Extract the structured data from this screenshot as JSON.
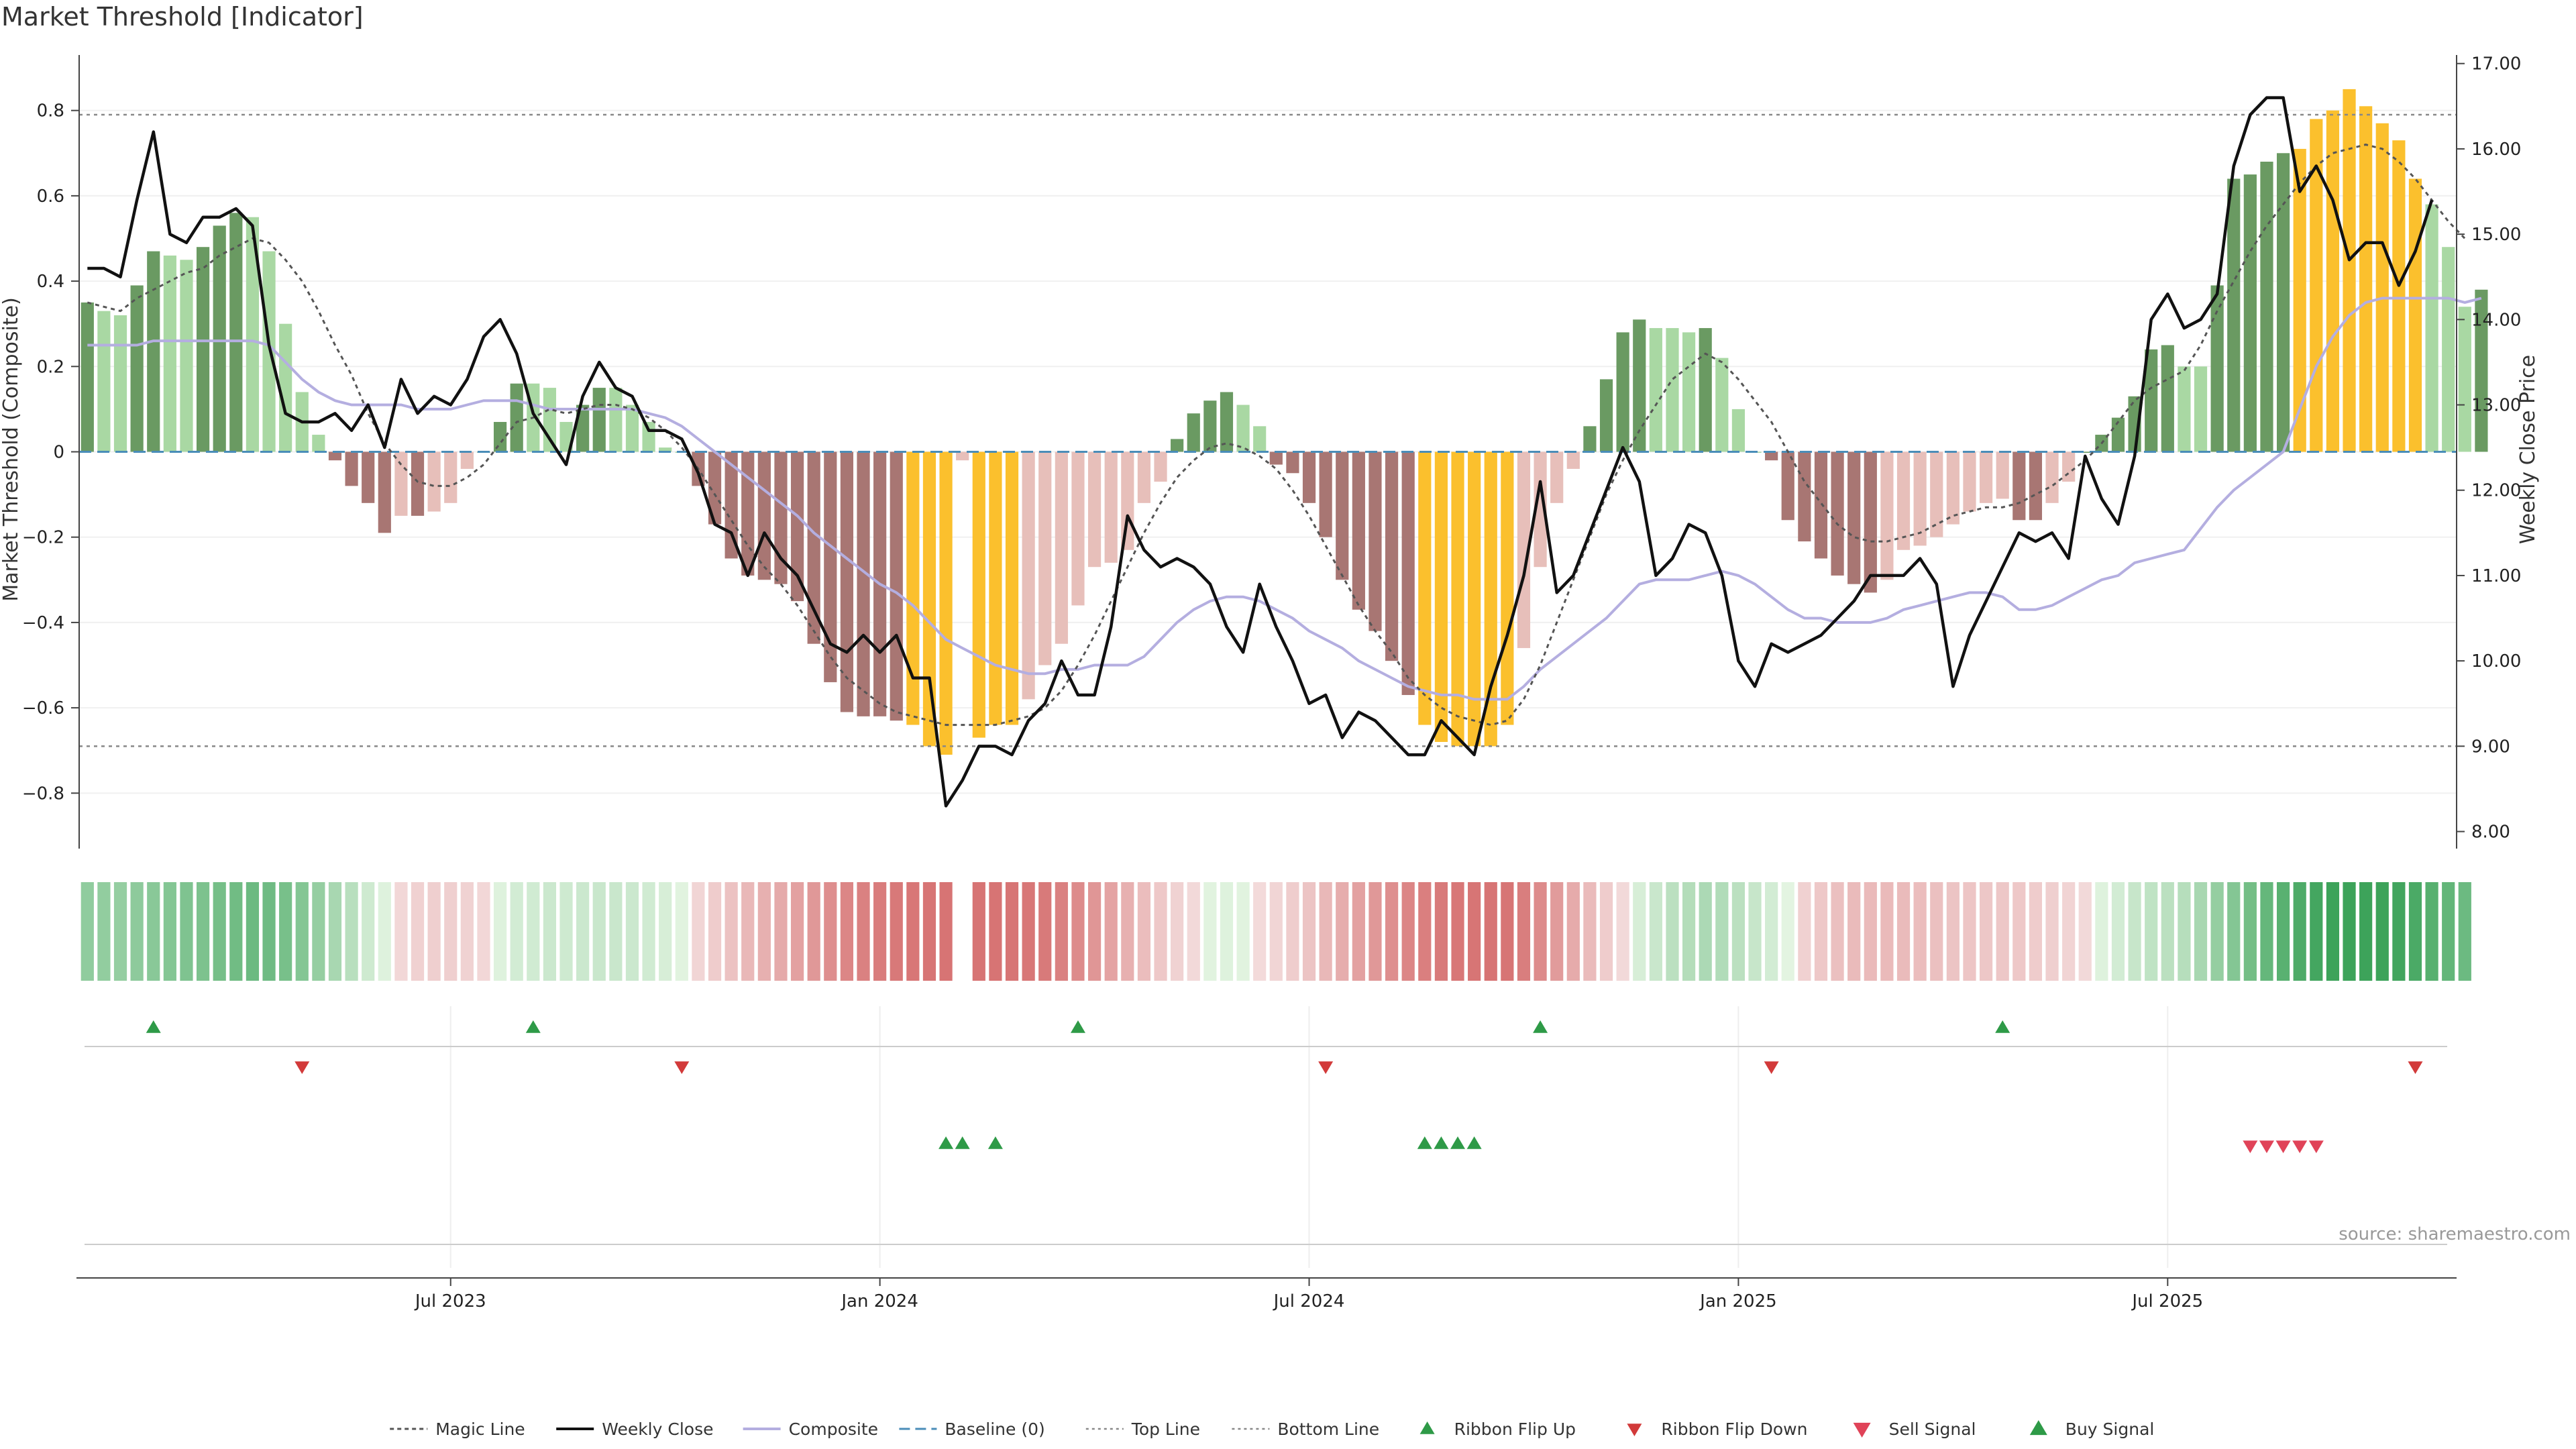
{
  "chart_data": {
    "type": "bar",
    "title": "Market Threshold [Indicator]",
    "ylabel_left": "Market Threshold (Composite)",
    "ylabel_right": "Weekly Close Price",
    "ylim_left": [
      -0.93,
      0.93
    ],
    "ylim_right": [
      7.8,
      17.1
    ],
    "yticks_left": [
      "−0.8",
      "−0.6",
      "−0.4",
      "−0.2",
      "0",
      "0.2",
      "0.4",
      "0.6",
      "0.8"
    ],
    "yticks_left_values": [
      -0.8,
      -0.6,
      -0.4,
      -0.2,
      0,
      0.2,
      0.4,
      0.6,
      0.8
    ],
    "yticks_right": [
      "8.00",
      "9.00",
      "10.00",
      "11.00",
      "12.00",
      "13.00",
      "14.00",
      "15.00",
      "16.00",
      "17.00"
    ],
    "yticks_right_values": [
      8,
      9,
      10,
      11,
      12,
      13,
      14,
      15,
      16,
      17
    ],
    "xticks": [
      {
        "label": "Jul 2023",
        "week": 22
      },
      {
        "label": "Jan 2024",
        "week": 48
      },
      {
        "label": "Jul 2024",
        "week": 74
      },
      {
        "label": "Jan 2025",
        "week": 100
      },
      {
        "label": "Jul 2025",
        "week": 126
      }
    ],
    "week_count": 144,
    "first_week": "2023-01-30",
    "top_line": 0.79,
    "bottom_line": -0.69,
    "bars": [
      0.35,
      0.33,
      0.32,
      0.39,
      0.47,
      0.46,
      0.45,
      0.48,
      0.53,
      0.56,
      0.55,
      0.47,
      0.3,
      0.14,
      0.04,
      -0.02,
      -0.08,
      -0.12,
      -0.19,
      -0.15,
      -0.15,
      -0.14,
      -0.12,
      -0.04,
      0.0,
      0.07,
      0.16,
      0.16,
      0.15,
      0.07,
      0.11,
      0.15,
      0.15,
      0.11,
      0.07,
      0.01,
      0.0,
      -0.08,
      -0.17,
      -0.25,
      -0.29,
      -0.3,
      -0.31,
      -0.35,
      -0.45,
      -0.54,
      -0.61,
      -0.62,
      -0.62,
      -0.63,
      -0.64,
      -0.69,
      -0.71,
      -0.02,
      -0.67,
      -0.64,
      -0.64,
      -0.58,
      -0.5,
      -0.45,
      -0.36,
      -0.27,
      -0.26,
      -0.23,
      -0.12,
      -0.07,
      0.03,
      0.09,
      0.12,
      0.14,
      0.11,
      0.06,
      -0.03,
      -0.05,
      -0.12,
      -0.2,
      -0.3,
      -0.37,
      -0.42,
      -0.49,
      -0.57,
      -0.64,
      -0.68,
      -0.69,
      -0.69,
      -0.69,
      -0.64,
      -0.46,
      -0.27,
      -0.12,
      -0.04,
      0.06,
      0.17,
      0.28,
      0.31,
      0.29,
      0.29,
      0.28,
      0.29,
      0.22,
      0.1,
      0.0,
      -0.02,
      -0.16,
      -0.21,
      -0.25,
      -0.29,
      -0.31,
      -0.33,
      -0.3,
      -0.23,
      -0.22,
      -0.2,
      -0.17,
      -0.14,
      -0.12,
      -0.11,
      -0.16,
      -0.16,
      -0.12,
      -0.07,
      0.0,
      0.04,
      0.08,
      0.13,
      0.24,
      0.25,
      0.2,
      0.2,
      0.39,
      0.64,
      0.65,
      0.68,
      0.7,
      0.71,
      0.78,
      0.8,
      0.85,
      0.81,
      0.77,
      0.73,
      0.64,
      0.58,
      0.48,
      0.34,
      0.38
    ],
    "magic_line": [
      0.35,
      0.34,
      0.33,
      0.36,
      0.38,
      0.4,
      0.42,
      0.43,
      0.46,
      0.48,
      0.5,
      0.49,
      0.45,
      0.4,
      0.33,
      0.25,
      0.18,
      0.09,
      0.02,
      -0.03,
      -0.07,
      -0.08,
      -0.08,
      -0.06,
      -0.03,
      0.02,
      0.07,
      0.08,
      0.1,
      0.09,
      0.1,
      0.11,
      0.11,
      0.1,
      0.08,
      0.05,
      0.01,
      -0.04,
      -0.1,
      -0.16,
      -0.22,
      -0.27,
      -0.31,
      -0.36,
      -0.42,
      -0.48,
      -0.53,
      -0.56,
      -0.59,
      -0.61,
      -0.62,
      -0.63,
      -0.64,
      -0.64,
      -0.64,
      -0.64,
      -0.63,
      -0.62,
      -0.6,
      -0.56,
      -0.5,
      -0.43,
      -0.35,
      -0.27,
      -0.19,
      -0.12,
      -0.06,
      -0.02,
      0.01,
      0.02,
      0.01,
      -0.01,
      -0.04,
      -0.09,
      -0.15,
      -0.22,
      -0.29,
      -0.36,
      -0.42,
      -0.47,
      -0.53,
      -0.57,
      -0.6,
      -0.62,
      -0.63,
      -0.64,
      -0.63,
      -0.58,
      -0.5,
      -0.4,
      -0.3,
      -0.2,
      -0.1,
      -0.02,
      0.05,
      0.11,
      0.17,
      0.2,
      0.23,
      0.21,
      0.17,
      0.12,
      0.07,
      0.0,
      -0.07,
      -0.12,
      -0.17,
      -0.2,
      -0.21,
      -0.21,
      -0.2,
      -0.19,
      -0.17,
      -0.15,
      -0.14,
      -0.13,
      -0.13,
      -0.12,
      -0.1,
      -0.08,
      -0.05,
      -0.02,
      0.02,
      0.07,
      0.12,
      0.15,
      0.17,
      0.19,
      0.25,
      0.33,
      0.4,
      0.47,
      0.53,
      0.58,
      0.63,
      0.67,
      0.7,
      0.71,
      0.72,
      0.71,
      0.68,
      0.64,
      0.59,
      0.54,
      0.5
    ],
    "composite": [
      0.25,
      0.25,
      0.25,
      0.25,
      0.26,
      0.26,
      0.26,
      0.26,
      0.26,
      0.26,
      0.26,
      0.25,
      0.21,
      0.17,
      0.14,
      0.12,
      0.11,
      0.11,
      0.11,
      0.11,
      0.1,
      0.1,
      0.1,
      0.11,
      0.12,
      0.12,
      0.12,
      0.11,
      0.1,
      0.1,
      0.1,
      0.1,
      0.1,
      0.1,
      0.09,
      0.08,
      0.06,
      0.03,
      0.0,
      -0.03,
      -0.06,
      -0.09,
      -0.12,
      -0.15,
      -0.19,
      -0.22,
      -0.25,
      -0.28,
      -0.31,
      -0.33,
      -0.36,
      -0.4,
      -0.44,
      -0.46,
      -0.48,
      -0.5,
      -0.51,
      -0.52,
      -0.52,
      -0.51,
      -0.51,
      -0.5,
      -0.5,
      -0.5,
      -0.48,
      -0.44,
      -0.4,
      -0.37,
      -0.35,
      -0.34,
      -0.34,
      -0.35,
      -0.37,
      -0.39,
      -0.42,
      -0.44,
      -0.46,
      -0.49,
      -0.51,
      -0.53,
      -0.55,
      -0.56,
      -0.57,
      -0.57,
      -0.58,
      -0.58,
      -0.58,
      -0.55,
      -0.51,
      -0.48,
      -0.45,
      -0.42,
      -0.39,
      -0.35,
      -0.31,
      -0.3,
      -0.3,
      -0.3,
      -0.29,
      -0.28,
      -0.29,
      -0.31,
      -0.34,
      -0.37,
      -0.39,
      -0.39,
      -0.4,
      -0.4,
      -0.4,
      -0.39,
      -0.37,
      -0.36,
      -0.35,
      -0.34,
      -0.33,
      -0.33,
      -0.34,
      -0.37,
      -0.37,
      -0.36,
      -0.34,
      -0.32,
      -0.3,
      -0.29,
      -0.26,
      -0.25,
      -0.24,
      -0.23,
      -0.18,
      -0.13,
      -0.09,
      -0.06,
      -0.03,
      0.0,
      0.1,
      0.2,
      0.27,
      0.32,
      0.35,
      0.36,
      0.36,
      0.36,
      0.36,
      0.36,
      0.35,
      0.36
    ],
    "weekly_close": [
      14.6,
      14.6,
      14.5,
      15.4,
      16.2,
      15.0,
      14.9,
      15.2,
      15.2,
      15.3,
      15.1,
      13.7,
      12.9,
      12.8,
      12.8,
      12.9,
      12.7,
      13.0,
      12.5,
      13.3,
      12.9,
      13.1,
      13.0,
      13.3,
      13.8,
      14.0,
      13.6,
      12.9,
      12.6,
      12.3,
      13.1,
      13.5,
      13.2,
      13.1,
      12.7,
      12.7,
      12.6,
      12.2,
      11.6,
      11.5,
      11.0,
      11.5,
      11.2,
      11.0,
      10.6,
      10.2,
      10.1,
      10.3,
      10.1,
      10.3,
      9.8,
      9.8,
      8.3,
      8.6,
      9.0,
      9.0,
      8.9,
      9.3,
      9.5,
      10.0,
      9.6,
      9.6,
      10.4,
      11.7,
      11.3,
      11.1,
      11.2,
      11.1,
      10.9,
      10.4,
      10.1,
      10.9,
      10.4,
      10.0,
      9.5,
      9.6,
      9.1,
      9.4,
      9.3,
      9.1,
      8.9,
      8.9,
      9.3,
      9.1,
      8.9,
      9.7,
      10.3,
      11.0,
      12.1,
      10.8,
      11.0,
      11.5,
      12.0,
      12.5,
      12.1,
      11.0,
      11.2,
      11.6,
      11.5,
      11.0,
      10.0,
      9.7,
      10.2,
      10.1,
      10.2,
      10.3,
      10.5,
      10.7,
      11.0,
      11.0,
      11.0,
      11.2,
      10.9,
      9.7,
      10.3,
      10.7,
      11.1,
      11.5,
      11.4,
      11.5,
      11.2,
      12.4,
      11.9,
      11.6,
      12.4,
      14.0,
      14.3,
      13.9,
      14.0,
      14.3,
      15.8,
      16.4,
      16.6,
      16.6,
      15.5,
      15.8,
      15.4,
      14.7,
      14.9,
      14.9,
      14.4,
      14.8,
      15.4
    ],
    "ribbon_flip_up_weeks": [
      4,
      27,
      60,
      88,
      116
    ],
    "ribbon_flip_down_weeks": [
      13,
      36,
      75,
      102,
      141
    ],
    "buy_signal_weeks": [
      52,
      53,
      55,
      81,
      82,
      83,
      84
    ],
    "sell_signal_weeks": [
      131,
      132,
      133,
      134,
      135
    ],
    "legend": [
      "Magic Line",
      "Weekly Close",
      "Composite",
      "Baseline (0)",
      "Top Line",
      "Bottom Line",
      "Ribbon Flip Up",
      "Ribbon Flip Down",
      "Sell Signal",
      "Buy Signal"
    ],
    "grid": true,
    "legend_position": "bottom-center"
  },
  "source_text": "source: sharemaestro.com",
  "colors": {
    "bar_pos_strong": "#6a9a62",
    "bar_pos_weak": "#a9d8a3",
    "bar_neg_strong": "#a87673",
    "bar_neg_weak": "#e7bfba",
    "bar_extreme": "#fbc02d",
    "magic_line": "#555555",
    "weekly_close": "#111111",
    "composite": "#b4aee0",
    "baseline": "#4a8db8",
    "ref_line": "#888888",
    "up_marker": "#2e9a47",
    "down_marker": "#d23a3a",
    "sell_marker": "#e04358",
    "buy_marker": "#2e9a47"
  }
}
